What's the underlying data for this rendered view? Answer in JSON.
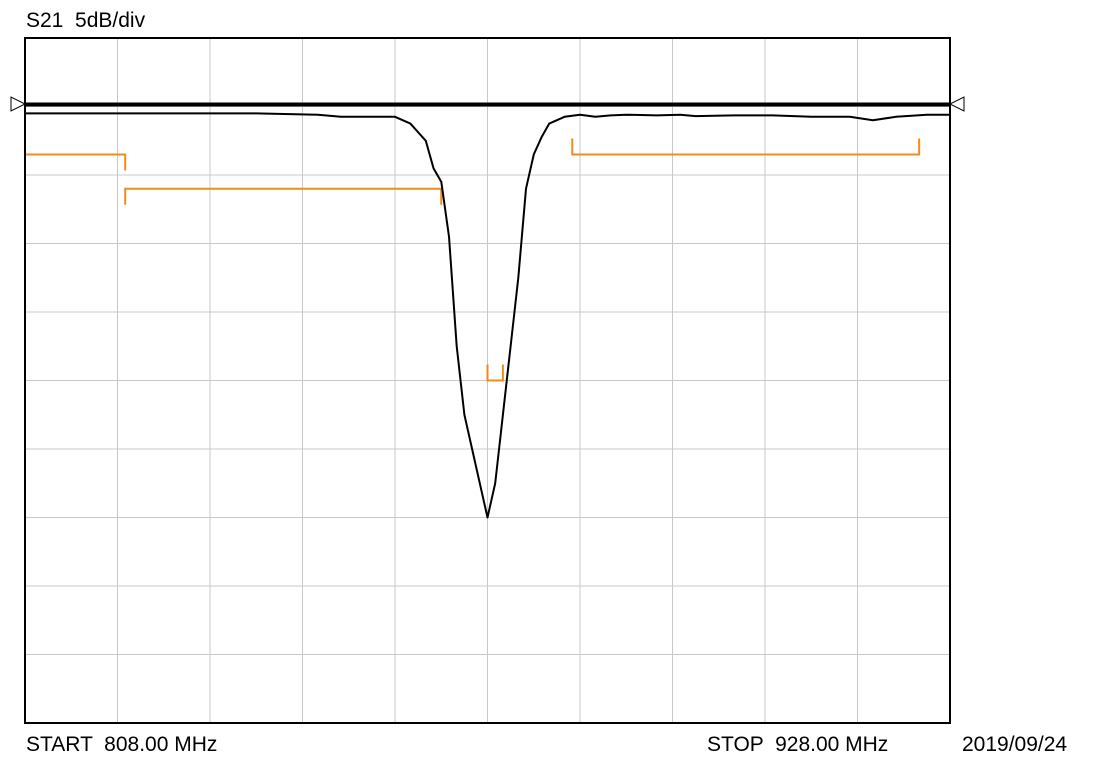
{
  "header": {
    "trace_label": "S21  5dB/div"
  },
  "footer": {
    "start_label": "START  808.00 MHz",
    "stop_label": "STOP  928.00 MHz",
    "date": "2019/09/24"
  },
  "colors": {
    "trace": "#000000",
    "limit": "#f28c18",
    "grid": "#c8c8c8",
    "frame": "#000000"
  },
  "chart_data": {
    "type": "line",
    "title": "S21  5dB/div",
    "xlabel": "",
    "ylabel": "",
    "x_unit": "MHz",
    "xlim": [
      808,
      928
    ],
    "x_divisions": 10,
    "y_divisions": 10,
    "ylim_div": [
      0,
      10
    ],
    "scale_db_per_div": 5,
    "grid": true,
    "reference_level_div": 0.97,
    "series": [
      {
        "x": [
          808,
          822,
          830,
          838,
          846,
          849,
          852,
          856,
          858,
          860,
          861,
          862,
          863,
          864,
          865,
          866,
          867,
          868,
          869,
          870,
          871,
          872,
          873,
          874,
          875,
          876,
          878,
          880,
          882,
          884,
          886,
          890,
          893,
          895,
          900,
          905,
          910,
          915,
          918,
          921,
          925,
          928
        ],
        "y": [
          1.1,
          1.1,
          1.1,
          1.1,
          1.12,
          1.15,
          1.15,
          1.15,
          1.25,
          1.5,
          1.9,
          2.1,
          2.9,
          4.5,
          5.5,
          6.0,
          6.5,
          7.0,
          6.5,
          5.5,
          4.5,
          3.5,
          2.2,
          1.7,
          1.45,
          1.25,
          1.15,
          1.12,
          1.15,
          1.13,
          1.12,
          1.13,
          1.12,
          1.14,
          1.13,
          1.13,
          1.15,
          1.15,
          1.2,
          1.15,
          1.12,
          1.12
        ]
      }
    ],
    "limit_lines": [
      {
        "x": [
          808,
          821
        ],
        "y": 1.7,
        "tick_dir": "down"
      },
      {
        "x": [
          821,
          862
        ],
        "y": 2.2,
        "tick_dir": "down"
      },
      {
        "x": [
          868,
          870
        ],
        "y": 5.0,
        "tick_dir": "up"
      },
      {
        "x": [
          879,
          924
        ],
        "y": 1.7,
        "tick_dir": "up"
      }
    ]
  }
}
